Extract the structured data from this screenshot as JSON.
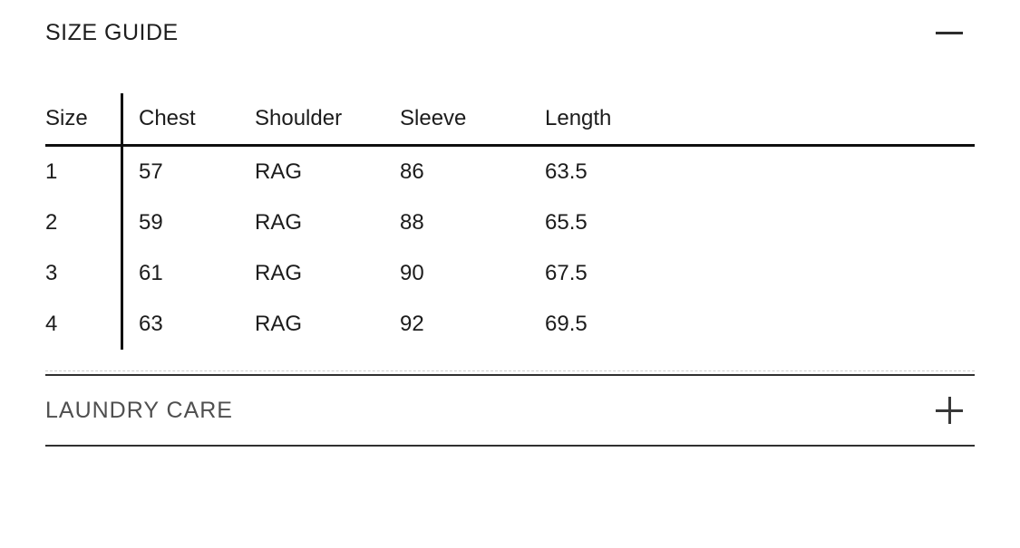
{
  "size_guide": {
    "title": "SIZE GUIDE",
    "state": "expanded",
    "toggle_icon": "minus-icon",
    "table": {
      "columns": [
        "Size",
        "Chest",
        "Shoulder",
        "Sleeve",
        "Length"
      ],
      "rows": [
        [
          "1",
          "57",
          "RAG",
          "86",
          "63.5"
        ],
        [
          "2",
          "59",
          "RAG",
          "88",
          "65.5"
        ],
        [
          "3",
          "61",
          "RAG",
          "90",
          "67.5"
        ],
        [
          "4",
          "63",
          "RAG",
          "92",
          "69.5"
        ]
      ]
    }
  },
  "laundry_care": {
    "title": "LAUNDRY CARE",
    "state": "collapsed",
    "toggle_icon": "plus-icon"
  },
  "colors": {
    "background": "#ffffff",
    "text_primary": "#1c1c1c",
    "text_secondary": "#4f4f4f",
    "table_line": "#0f0f0f",
    "section_divider": "#303030",
    "dashed_divider": "#cfcfcf",
    "icon": "#333333"
  }
}
